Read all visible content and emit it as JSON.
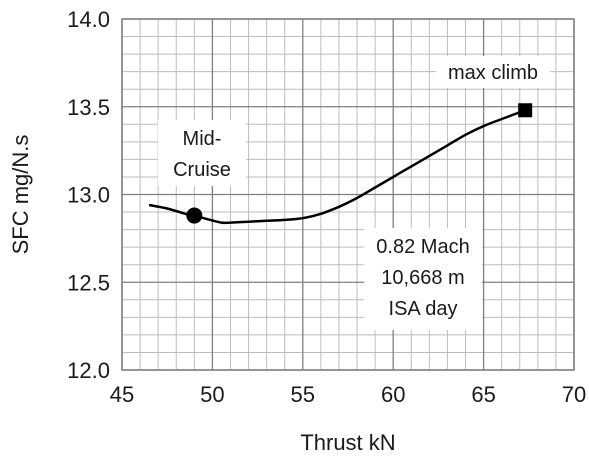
{
  "chart_data": {
    "type": "line",
    "xlabel": "Thrust kN",
    "ylabel": "SFC mg/N.s",
    "xlim": [
      45,
      70
    ],
    "ylim": [
      12.0,
      14.0
    ],
    "x_ticks": [
      "45",
      "50",
      "55",
      "60",
      "65",
      "70"
    ],
    "y_ticks": [
      "12.0",
      "12.5",
      "13.0",
      "13.5",
      "14.0"
    ],
    "grid": true,
    "minor_grid": true,
    "series": [
      {
        "x": [
          46.5,
          47.5,
          48.5,
          49.0,
          49.7,
          50.5,
          51.0,
          52.0,
          53.0,
          54.0,
          55.0,
          56.0,
          57.0,
          58.0,
          59.0,
          60.0,
          61.0,
          62.0,
          63.0,
          64.0,
          65.0,
          66.0,
          67.3
        ],
        "y": [
          12.94,
          12.92,
          12.89,
          12.88,
          12.86,
          12.84,
          12.84,
          12.845,
          12.85,
          12.855,
          12.865,
          12.89,
          12.93,
          12.98,
          13.04,
          13.1,
          13.16,
          13.22,
          13.28,
          13.34,
          13.39,
          13.43,
          13.48
        ]
      }
    ],
    "markers": [
      {
        "x": 49.0,
        "y": 12.88,
        "shape": "circle",
        "label": [
          "Mid-",
          "Cruise"
        ]
      },
      {
        "x": 67.3,
        "y": 13.48,
        "shape": "square",
        "label": [
          "max climb"
        ]
      }
    ],
    "annotation": [
      "0.82 Mach",
      "10,668 m",
      "ISA day"
    ],
    "colors": {
      "line": "#000000",
      "grid": "#7f7f7f",
      "minor_grid": "#bdbdbd",
      "frame": "#7f7f7f"
    }
  }
}
